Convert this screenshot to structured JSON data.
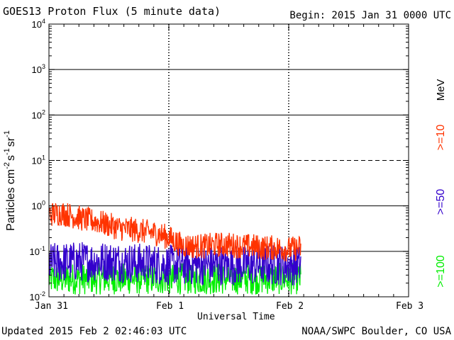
{
  "header": {
    "title": "GOES13 Proton Flux (5 minute data)",
    "begin": "Begin: 2015 Jan 31 0000 UTC"
  },
  "footer": {
    "updated": "Updated 2015 Feb  2 02:46:03 UTC",
    "credit": "NOAA/SWPC Boulder, CO USA"
  },
  "colors": {
    "ge10": "#ff3300",
    "ge50": "#3300cc",
    "ge100": "#00ee00",
    "axis": "#000000"
  },
  "chart_data": {
    "type": "line",
    "title": "GOES13 Proton Flux (5 minute data)",
    "xlabel": "Universal Time",
    "ylabel_parts": [
      "Particles cm",
      "-2",
      "s",
      "-1",
      "sr",
      "-1"
    ],
    "yscale": "log",
    "ylim": [
      0.01,
      10000
    ],
    "y_ticks": [
      {
        "base": "10",
        "exp": "-2",
        "value": 0.01
      },
      {
        "base": "10",
        "exp": "-1",
        "value": 0.1
      },
      {
        "base": "10",
        "exp": "0",
        "value": 1
      },
      {
        "base": "10",
        "exp": "1",
        "value": 10
      },
      {
        "base": "10",
        "exp": "2",
        "value": 100
      },
      {
        "base": "10",
        "exp": "3",
        "value": 1000
      },
      {
        "base": "10",
        "exp": "4",
        "value": 10000
      }
    ],
    "hlines": [
      {
        "value": 0.1,
        "style": "solid"
      },
      {
        "value": 1,
        "style": "solid"
      },
      {
        "value": 10,
        "style": "dashed"
      },
      {
        "value": 100,
        "style": "solid"
      },
      {
        "value": 1000,
        "style": "solid"
      }
    ],
    "x_units": "days since 2015 Jan 31 0000 UTC",
    "xlim": [
      0,
      3
    ],
    "x_ticks": [
      {
        "label": "Jan 31",
        "value": 0
      },
      {
        "label": "Feb 1",
        "value": 1
      },
      {
        "label": "Feb 2",
        "value": 2
      },
      {
        "label": "Feb 3",
        "value": 3
      }
    ],
    "vlines": [
      1,
      2
    ],
    "legend": {
      "placement": "right",
      "unit": "MeV",
      "entries": [
        {
          "label": ">=10",
          "color": "#ff3300"
        },
        {
          "label": ">=50",
          "color": "#3300cc"
        },
        {
          "label": ">=100",
          "color": "#00ee00"
        }
      ]
    },
    "series": [
      {
        "name": ">=10 MeV",
        "color": "#ff3300",
        "x": [
          0.0,
          0.1,
          0.2,
          0.3,
          0.4,
          0.5,
          0.6,
          0.7,
          0.8,
          0.9,
          1.0,
          1.1,
          1.2,
          1.3,
          1.4,
          1.5,
          1.6,
          1.7,
          1.8,
          1.9,
          2.0,
          2.1
        ],
        "values": [
          0.65,
          0.7,
          0.6,
          0.5,
          0.45,
          0.38,
          0.32,
          0.3,
          0.27,
          0.25,
          0.2,
          0.14,
          0.13,
          0.13,
          0.14,
          0.14,
          0.13,
          0.13,
          0.12,
          0.12,
          0.11,
          0.12
        ]
      },
      {
        "name": ">=50 MeV",
        "color": "#3300cc",
        "x": [
          0.0,
          0.25,
          0.5,
          0.75,
          1.0,
          1.25,
          1.5,
          1.75,
          2.0,
          2.1
        ],
        "values": [
          0.055,
          0.06,
          0.06,
          0.055,
          0.05,
          0.05,
          0.05,
          0.05,
          0.05,
          0.05
        ]
      },
      {
        "name": ">=100 MeV",
        "color": "#00ee00",
        "x": [
          0.0,
          0.25,
          0.5,
          0.75,
          1.0,
          1.25,
          1.5,
          1.75,
          2.0,
          2.1
        ],
        "values": [
          0.025,
          0.025,
          0.025,
          0.025,
          0.025,
          0.025,
          0.025,
          0.025,
          0.025,
          0.025
        ]
      }
    ]
  }
}
